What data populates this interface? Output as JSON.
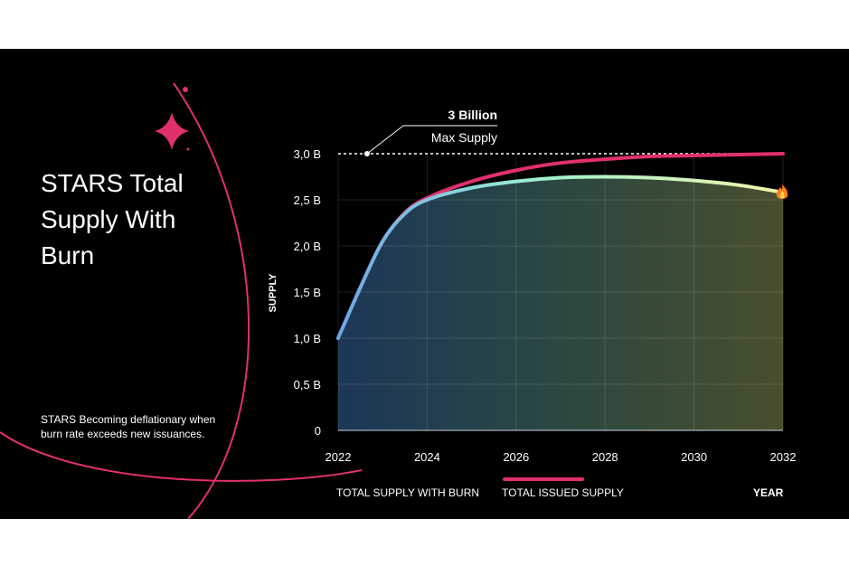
{
  "title": "STARS Total\nSupply With\nBurn",
  "description": "STARS Becoming deflationary when\nburn rate exceeds new issuances.",
  "annotation": {
    "title": "3 Billion",
    "subtitle": "Max Supply"
  },
  "colors": {
    "accent": "#e0306e",
    "burn_start": "#6aa6e8",
    "burn_end": "#f2f5a8",
    "background": "#000000"
  },
  "icons": {
    "burn_marker": "fire-icon",
    "decoration": "sparkle-star-icon"
  },
  "chart_data": {
    "type": "area",
    "xlabel": "YEAR",
    "ylabel": "SUPPLY",
    "xlim": [
      2022,
      2032
    ],
    "ylim": [
      0,
      3.0
    ],
    "x_ticks": [
      "2022",
      "2024",
      "2026",
      "2028",
      "2030",
      "2032"
    ],
    "y_ticks": [
      "0",
      "0,5 B",
      "1,0 B",
      "1,5 B",
      "2,0 B",
      "2,5 B",
      "3,0 B"
    ],
    "y_tick_values": [
      0,
      0.5,
      1.0,
      1.5,
      2.0,
      2.5,
      3.0
    ],
    "reference_line": {
      "y": 3.0
    },
    "grid": true,
    "legend_position": "bottom",
    "series": [
      {
        "name": "TOTAL SUPPLY WITH BURN",
        "x": [
          2022,
          2022.5,
          2023,
          2023.5,
          2024,
          2025,
          2026,
          2027,
          2028,
          2029,
          2030,
          2031,
          2032
        ],
        "y": [
          1.0,
          1.55,
          2.05,
          2.35,
          2.5,
          2.63,
          2.7,
          2.74,
          2.75,
          2.74,
          2.71,
          2.66,
          2.58
        ]
      },
      {
        "name": "TOTAL ISSUED SUPPLY",
        "x": [
          2022,
          2022.5,
          2023,
          2023.5,
          2024,
          2025,
          2026,
          2027,
          2028,
          2029,
          2030,
          2031,
          2032
        ],
        "y": [
          1.0,
          1.55,
          2.05,
          2.36,
          2.52,
          2.7,
          2.82,
          2.9,
          2.94,
          2.97,
          2.98,
          2.99,
          3.0
        ]
      }
    ]
  }
}
